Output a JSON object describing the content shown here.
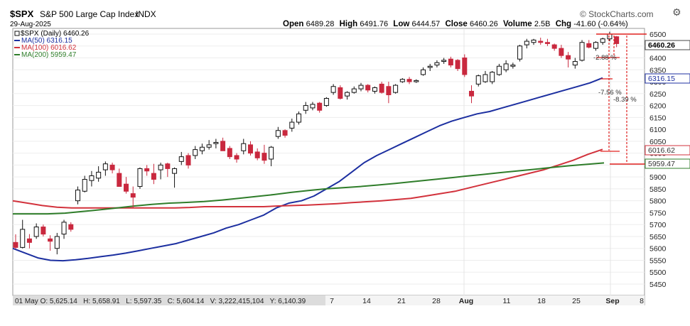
{
  "header": {
    "symbol": "$SPX",
    "name": "S&P 500 Large Cap Index",
    "exchange": "INDX",
    "date": "29-Aug-2025",
    "watermark": "© StockCharts.com",
    "open_label": "Open",
    "open": "6489.28",
    "high_label": "High",
    "high": "6491.76",
    "low_label": "Low",
    "low": "6444.57",
    "close_label": "Close",
    "close": "6460.26",
    "volume_label": "Volume",
    "volume": "2.5B",
    "chg_label": "Chg",
    "chg": "-41.60 (-0.64%)"
  },
  "legend": {
    "price": "$SPX (Daily) 6460.26",
    "ma50": "MA(50) 6316.15",
    "ma100": "MA(100) 6016.62",
    "ma200": "MA(200) 5959.47"
  },
  "status_bar": "01 May O: 5,625.14   H: 5,658.91   L: 5,597.35   C: 5,604.14   V: 3,222,415,104   Y: 6,140.39",
  "annotations": {
    "pct1": "-2.88 %",
    "pct2": "-7.56 %",
    "pct3": "-8.39 %"
  },
  "axis_badges": {
    "close": "6460.26",
    "ma50": "6316.15",
    "ma100": "6016.62",
    "ma200": "5959.47"
  },
  "colors": {
    "up": "#ffffff",
    "down": "#c9283e",
    "ma50": "#1c2fa0",
    "ma100": "#d2323c",
    "ma200": "#2f7d2a",
    "annotation": "#e0201e"
  },
  "chart_data": {
    "type": "candlestick",
    "title": "$SPX S&P 500 Large Cap Index INDX",
    "ylim": [
      5420,
      6520
    ],
    "y_ticks": [
      5450,
      5500,
      5550,
      5600,
      5650,
      5700,
      5750,
      5800,
      5850,
      5900,
      5950,
      6000,
      6050,
      6100,
      6150,
      6200,
      6250,
      6300,
      6350,
      6400,
      6450,
      6500
    ],
    "x_tick_labels": [
      "7",
      "14",
      "21",
      "28",
      "Aug",
      "11",
      "18",
      "25",
      "Sep",
      "8"
    ],
    "candles": [
      {
        "o": 5625,
        "h": 5659,
        "l": 5597,
        "c": 5604
      },
      {
        "o": 5604,
        "h": 5720,
        "l": 5600,
        "c": 5680
      },
      {
        "o": 5640,
        "h": 5660,
        "l": 5600,
        "c": 5625
      },
      {
        "o": 5650,
        "h": 5705,
        "l": 5640,
        "c": 5690
      },
      {
        "o": 5690,
        "h": 5700,
        "l": 5650,
        "c": 5660
      },
      {
        "o": 5640,
        "h": 5655,
        "l": 5590,
        "c": 5630
      },
      {
        "o": 5600,
        "h": 5665,
        "l": 5575,
        "c": 5650
      },
      {
        "o": 5660,
        "h": 5720,
        "l": 5640,
        "c": 5710
      },
      {
        "o": 5700,
        "h": 5710,
        "l": 5670,
        "c": 5680
      },
      {
        "o": 5800,
        "h": 5860,
        "l": 5785,
        "c": 5845
      },
      {
        "o": 5840,
        "h": 5905,
        "l": 5835,
        "c": 5890
      },
      {
        "o": 5885,
        "h": 5925,
        "l": 5860,
        "c": 5905
      },
      {
        "o": 5895,
        "h": 5945,
        "l": 5880,
        "c": 5920
      },
      {
        "o": 5930,
        "h": 5965,
        "l": 5905,
        "c": 5955
      },
      {
        "o": 5950,
        "h": 5960,
        "l": 5915,
        "c": 5930
      },
      {
        "o": 5915,
        "h": 5935,
        "l": 5870,
        "c": 5860
      },
      {
        "o": 5870,
        "h": 5900,
        "l": 5830,
        "c": 5840
      },
      {
        "o": 5830,
        "h": 5860,
        "l": 5770,
        "c": 5815
      },
      {
        "o": 5860,
        "h": 5940,
        "l": 5850,
        "c": 5935
      },
      {
        "o": 5935,
        "h": 5950,
        "l": 5905,
        "c": 5925
      },
      {
        "o": 5915,
        "h": 5955,
        "l": 5870,
        "c": 5890
      },
      {
        "o": 5930,
        "h": 5960,
        "l": 5890,
        "c": 5950
      },
      {
        "o": 5955,
        "h": 5960,
        "l": 5900,
        "c": 5935
      },
      {
        "o": 5915,
        "h": 5940,
        "l": 5855,
        "c": 5935
      },
      {
        "o": 5965,
        "h": 6005,
        "l": 5950,
        "c": 5985
      },
      {
        "o": 5990,
        "h": 6000,
        "l": 5935,
        "c": 5950
      },
      {
        "o": 5990,
        "h": 6030,
        "l": 5975,
        "c": 6015
      },
      {
        "o": 6010,
        "h": 6040,
        "l": 5995,
        "c": 6025
      },
      {
        "o": 6025,
        "h": 6055,
        "l": 6015,
        "c": 6035
      },
      {
        "o": 6040,
        "h": 6060,
        "l": 6020,
        "c": 6045
      },
      {
        "o": 6050,
        "h": 6065,
        "l": 6020,
        "c": 6010
      },
      {
        "o": 6020,
        "h": 6030,
        "l": 5975,
        "c": 5985
      },
      {
        "o": 5990,
        "h": 6000,
        "l": 5960,
        "c": 5975
      },
      {
        "o": 6010,
        "h": 6060,
        "l": 5995,
        "c": 6040
      },
      {
        "o": 6035,
        "h": 6050,
        "l": 5990,
        "c": 6000
      },
      {
        "o": 6005,
        "h": 6020,
        "l": 5970,
        "c": 5980
      },
      {
        "o": 6000,
        "h": 6035,
        "l": 5955,
        "c": 5970
      },
      {
        "o": 5975,
        "h": 6030,
        "l": 5945,
        "c": 6025
      },
      {
        "o": 6070,
        "h": 6110,
        "l": 6060,
        "c": 6095
      },
      {
        "o": 6095,
        "h": 6100,
        "l": 6065,
        "c": 6075
      },
      {
        "o": 6105,
        "h": 6145,
        "l": 6090,
        "c": 6130
      },
      {
        "o": 6130,
        "h": 6175,
        "l": 6120,
        "c": 6165
      },
      {
        "o": 6180,
        "h": 6215,
        "l": 6165,
        "c": 6200
      },
      {
        "o": 6190,
        "h": 6215,
        "l": 6180,
        "c": 6205
      },
      {
        "o": 6210,
        "h": 6215,
        "l": 6170,
        "c": 6180
      },
      {
        "o": 6200,
        "h": 6235,
        "l": 6195,
        "c": 6230
      },
      {
        "o": 6255,
        "h": 6290,
        "l": 6245,
        "c": 6280
      },
      {
        "o": 6275,
        "h": 6285,
        "l": 6225,
        "c": 6230
      },
      {
        "o": 6240,
        "h": 6260,
        "l": 6225,
        "c": 6255
      },
      {
        "o": 6255,
        "h": 6280,
        "l": 6250,
        "c": 6270
      },
      {
        "o": 6270,
        "h": 6295,
        "l": 6260,
        "c": 6285
      },
      {
        "o": 6285,
        "h": 6290,
        "l": 6255,
        "c": 6265
      },
      {
        "o": 6260,
        "h": 6280,
        "l": 6250,
        "c": 6275
      },
      {
        "o": 6290,
        "h": 6300,
        "l": 6250,
        "c": 6255
      },
      {
        "o": 6280,
        "h": 6300,
        "l": 6210,
        "c": 6245
      },
      {
        "o": 6255,
        "h": 6290,
        "l": 6250,
        "c": 6285
      },
      {
        "o": 6300,
        "h": 6315,
        "l": 6295,
        "c": 6310
      },
      {
        "o": 6310,
        "h": 6320,
        "l": 6290,
        "c": 6300
      },
      {
        "o": 6300,
        "h": 6310,
        "l": 6295,
        "c": 6305
      },
      {
        "o": 6330,
        "h": 6360,
        "l": 6325,
        "c": 6350
      },
      {
        "o": 6360,
        "h": 6375,
        "l": 6345,
        "c": 6365
      },
      {
        "o": 6370,
        "h": 6390,
        "l": 6360,
        "c": 6380
      },
      {
        "o": 6385,
        "h": 6400,
        "l": 6375,
        "c": 6390
      },
      {
        "o": 6395,
        "h": 6405,
        "l": 6360,
        "c": 6370
      },
      {
        "o": 6390,
        "h": 6395,
        "l": 6345,
        "c": 6355
      },
      {
        "o": 6400,
        "h": 6415,
        "l": 6320,
        "c": 6330
      },
      {
        "o": 6260,
        "h": 6285,
        "l": 6210,
        "c": 6240
      },
      {
        "o": 6290,
        "h": 6330,
        "l": 6280,
        "c": 6325
      },
      {
        "o": 6300,
        "h": 6345,
        "l": 6295,
        "c": 6330
      },
      {
        "o": 6300,
        "h": 6345,
        "l": 6290,
        "c": 6340
      },
      {
        "o": 6330,
        "h": 6375,
        "l": 6325,
        "c": 6365
      },
      {
        "o": 6350,
        "h": 6390,
        "l": 6340,
        "c": 6375
      },
      {
        "o": 6365,
        "h": 6380,
        "l": 6355,
        "c": 6370
      },
      {
        "o": 6395,
        "h": 6455,
        "l": 6385,
        "c": 6450
      },
      {
        "o": 6455,
        "h": 6480,
        "l": 6440,
        "c": 6470
      },
      {
        "o": 6465,
        "h": 6480,
        "l": 6455,
        "c": 6475
      },
      {
        "o": 6470,
        "h": 6485,
        "l": 6455,
        "c": 6465
      },
      {
        "o": 6465,
        "h": 6480,
        "l": 6450,
        "c": 6460
      },
      {
        "o": 6455,
        "h": 6460,
        "l": 6430,
        "c": 6440
      },
      {
        "o": 6440,
        "h": 6455,
        "l": 6400,
        "c": 6410
      },
      {
        "o": 6410,
        "h": 6425,
        "l": 6360,
        "c": 6395
      },
      {
        "o": 6370,
        "h": 6400,
        "l": 6355,
        "c": 6385
      },
      {
        "o": 6390,
        "h": 6475,
        "l": 6385,
        "c": 6465
      },
      {
        "o": 6460,
        "h": 6475,
        "l": 6440,
        "c": 6445
      },
      {
        "o": 6440,
        "h": 6470,
        "l": 6430,
        "c": 6465
      },
      {
        "o": 6465,
        "h": 6485,
        "l": 6455,
        "c": 6480
      },
      {
        "o": 6480,
        "h": 6510,
        "l": 6470,
        "c": 6500
      },
      {
        "o": 6489,
        "h": 6492,
        "l": 6445,
        "c": 6460
      }
    ],
    "series": [
      {
        "name": "MA(50) 6316.15",
        "color": "#1c2fa0",
        "values": [
          5600,
          5580,
          5560,
          5550,
          5548,
          5552,
          5558,
          5565,
          5572,
          5580,
          5590,
          5600,
          5610,
          5620,
          5635,
          5650,
          5665,
          5685,
          5700,
          5720,
          5740,
          5770,
          5790,
          5800,
          5820,
          5850,
          5880,
          5920,
          5960,
          5990,
          6015,
          6040,
          6065,
          6090,
          6115,
          6135,
          6150,
          6165,
          6175,
          6190,
          6205,
          6220,
          6235,
          6250,
          6265,
          6280,
          6295,
          6316
        ]
      },
      {
        "name": "MA(100) 6016.62",
        "color": "#d2323c",
        "values": [
          5800,
          5790,
          5780,
          5773,
          5770,
          5770,
          5770,
          5770,
          5770,
          5770,
          5770,
          5770,
          5772,
          5775,
          5775,
          5775,
          5775,
          5775,
          5778,
          5780,
          5782,
          5785,
          5788,
          5792,
          5796,
          5800,
          5805,
          5810,
          5820,
          5830,
          5840,
          5855,
          5870,
          5885,
          5900,
          5915,
          5930,
          5950,
          5970,
          5995,
          6016
        ]
      },
      {
        "name": "MA(200) 5959.47",
        "color": "#2f7d2a",
        "values": [
          5745,
          5745,
          5745,
          5748,
          5755,
          5762,
          5770,
          5778,
          5785,
          5790,
          5793,
          5797,
          5803,
          5810,
          5818,
          5826,
          5835,
          5843,
          5850,
          5855,
          5860,
          5866,
          5873,
          5880,
          5888,
          5895,
          5903,
          5910,
          5918,
          5925,
          5932,
          5940,
          5947,
          5953,
          5959
        ]
      }
    ]
  }
}
